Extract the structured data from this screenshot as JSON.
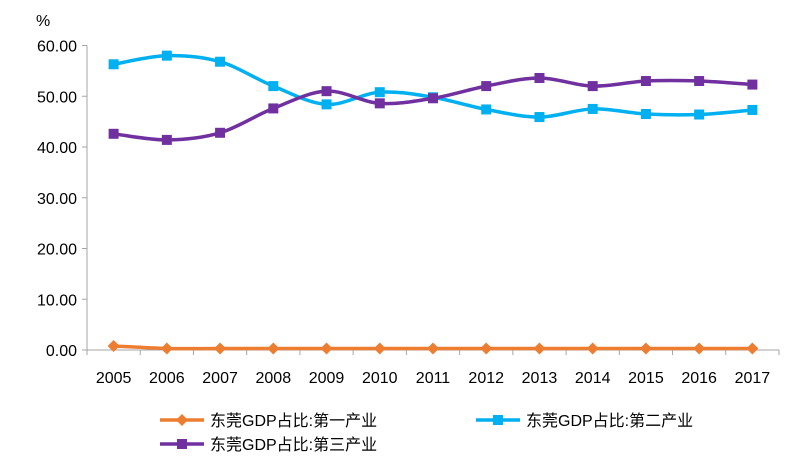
{
  "chart_data": {
    "type": "line",
    "unit": "%",
    "categories": [
      "2005",
      "2006",
      "2007",
      "2008",
      "2009",
      "2010",
      "2011",
      "2012",
      "2013",
      "2014",
      "2015",
      "2016",
      "2017"
    ],
    "yticks": [
      "0.00",
      "10.00",
      "20.00",
      "30.00",
      "40.00",
      "50.00",
      "60.00"
    ],
    "ylim": [
      0,
      60
    ],
    "grid": false,
    "legend_position": "bottom",
    "series": [
      {
        "name": "东莞GDP占比:第一产业",
        "color": "#ED7D31",
        "marker": "diamond",
        "values": [
          0.8,
          0.3,
          0.3,
          0.3,
          0.3,
          0.3,
          0.3,
          0.3,
          0.3,
          0.3,
          0.3,
          0.3,
          0.3
        ]
      },
      {
        "name": "东莞GDP占比:第二产业",
        "color": "#00B0F0",
        "marker": "square",
        "values": [
          56.3,
          58.0,
          56.8,
          52.0,
          48.4,
          50.8,
          49.8,
          47.4,
          45.9,
          47.5,
          46.5,
          46.4,
          47.3
        ]
      },
      {
        "name": "东莞GDP占比:第三产业",
        "color": "#7030A0",
        "marker": "square",
        "values": [
          42.6,
          41.4,
          42.8,
          47.6,
          51.0,
          48.6,
          49.6,
          52.0,
          53.6,
          52.0,
          53.0,
          53.0,
          52.3
        ]
      }
    ]
  }
}
